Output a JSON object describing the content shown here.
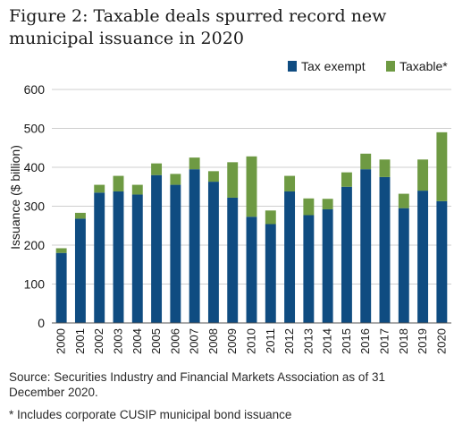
{
  "title": "Figure 2: Taxable deals spurred record new municipal issuance in 2020",
  "source": "Source: Securities Industry and Financial Markets Association as of 31 December 2020.",
  "footnote": "* Includes corporate CUSIP municipal bond issuance",
  "colors": {
    "tax_exempt": "#0f4c81",
    "taxable": "#6e9a43"
  },
  "chart_data": {
    "type": "bar",
    "stacked": true,
    "ylabel": "Issuance ($ billion)",
    "xlabel": "",
    "ylim": [
      0,
      600
    ],
    "yticks": [
      0,
      100,
      200,
      300,
      400,
      500,
      600
    ],
    "grid": "horizontal",
    "legend_position": "top-right",
    "categories": [
      "2000",
      "2001",
      "2002",
      "2003",
      "2004",
      "2005",
      "2006",
      "2007",
      "2008",
      "2009",
      "2010",
      "2011",
      "2012",
      "2013",
      "2014",
      "2015",
      "2016",
      "2017",
      "2018",
      "2019",
      "2020"
    ],
    "series": [
      {
        "name": "Tax exempt",
        "values": [
          180,
          268,
          335,
          338,
          330,
          380,
          355,
          395,
          363,
          322,
          273,
          254,
          338,
          277,
          292,
          350,
          395,
          375,
          295,
          340,
          313
        ]
      },
      {
        "name": "Taxable*",
        "values": [
          12,
          15,
          20,
          40,
          25,
          30,
          28,
          30,
          27,
          91,
          155,
          35,
          40,
          43,
          27,
          37,
          40,
          45,
          37,
          80,
          177
        ]
      }
    ]
  }
}
